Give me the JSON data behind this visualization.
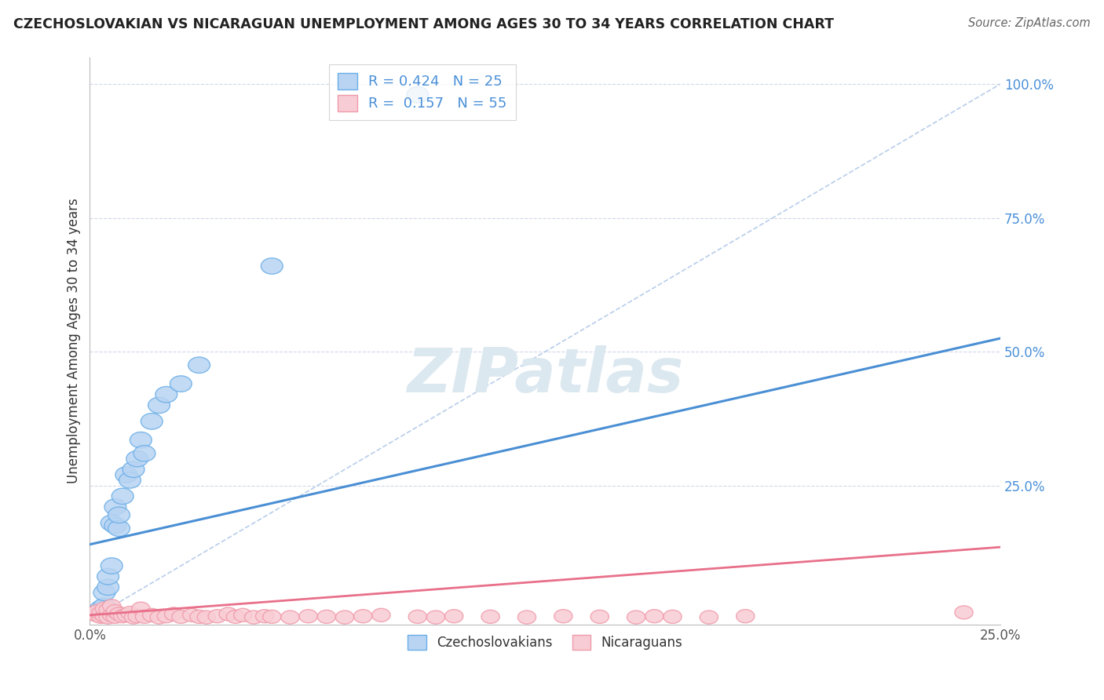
{
  "title": "CZECHOSLOVAKIAN VS NICARAGUAN UNEMPLOYMENT AMONG AGES 30 TO 34 YEARS CORRELATION CHART",
  "source": "Source: ZipAtlas.com",
  "ylabel": "Unemployment Among Ages 30 to 34 years",
  "xlim": [
    0.0,
    0.25
  ],
  "ylim": [
    -0.01,
    1.05
  ],
  "background_color": "#ffffff",
  "czech_edge_color": "#6aaee8",
  "czech_fill_color": "#b8d4f2",
  "nic_edge_color": "#f09aaa",
  "nic_fill_color": "#f8ccd4",
  "czech_R": "0.424",
  "czech_N": "25",
  "nic_R": "0.157",
  "nic_N": "55",
  "legend_label_czech": "Czechoslovakians",
  "legend_label_nic": "Nicaraguans",
  "czech_line_color": "#4a8fd4",
  "nic_line_color": "#e8708a",
  "ref_line_color": "#b0c8e8",
  "grid_color": "#d0d8e8",
  "watermark": "ZIPatlas",
  "watermark_color": "#dce8f0",
  "czech_x": [
    0.003,
    0.004,
    0.004,
    0.005,
    0.005,
    0.006,
    0.006,
    0.007,
    0.007,
    0.008,
    0.008,
    0.009,
    0.01,
    0.011,
    0.012,
    0.013,
    0.014,
    0.015,
    0.017,
    0.019,
    0.021,
    0.025,
    0.03,
    0.05,
    0.09
  ],
  "czech_y": [
    0.02,
    0.025,
    0.05,
    0.06,
    0.08,
    0.1,
    0.18,
    0.175,
    0.21,
    0.17,
    0.195,
    0.23,
    0.27,
    0.26,
    0.28,
    0.3,
    0.335,
    0.31,
    0.37,
    0.4,
    0.42,
    0.44,
    0.475,
    0.66,
    0.98
  ],
  "nic_x": [
    0.001,
    0.002,
    0.002,
    0.003,
    0.003,
    0.004,
    0.004,
    0.005,
    0.005,
    0.006,
    0.006,
    0.007,
    0.007,
    0.008,
    0.009,
    0.01,
    0.011,
    0.012,
    0.013,
    0.014,
    0.015,
    0.017,
    0.019,
    0.021,
    0.023,
    0.025,
    0.028,
    0.03,
    0.032,
    0.035,
    0.038,
    0.04,
    0.042,
    0.045,
    0.048,
    0.05,
    0.055,
    0.06,
    0.065,
    0.07,
    0.075,
    0.08,
    0.09,
    0.095,
    0.1,
    0.11,
    0.12,
    0.13,
    0.14,
    0.15,
    0.155,
    0.16,
    0.17,
    0.18,
    0.24
  ],
  "nic_y": [
    0.01,
    0.008,
    0.015,
    0.005,
    0.012,
    0.006,
    0.02,
    0.004,
    0.018,
    0.008,
    0.025,
    0.005,
    0.015,
    0.01,
    0.006,
    0.008,
    0.012,
    0.004,
    0.006,
    0.02,
    0.005,
    0.008,
    0.004,
    0.006,
    0.01,
    0.005,
    0.008,
    0.005,
    0.004,
    0.006,
    0.01,
    0.005,
    0.008,
    0.004,
    0.006,
    0.005,
    0.004,
    0.006,
    0.005,
    0.004,
    0.006,
    0.008,
    0.005,
    0.004,
    0.006,
    0.005,
    0.004,
    0.006,
    0.005,
    0.004,
    0.006,
    0.005,
    0.004,
    0.006,
    0.013
  ],
  "czech_line_x0": 0.0,
  "czech_line_y0": 0.14,
  "czech_line_x1": 0.25,
  "czech_line_y1": 0.525,
  "nic_line_x0": 0.0,
  "nic_line_y0": 0.008,
  "nic_line_x1": 0.25,
  "nic_line_y1": 0.135
}
